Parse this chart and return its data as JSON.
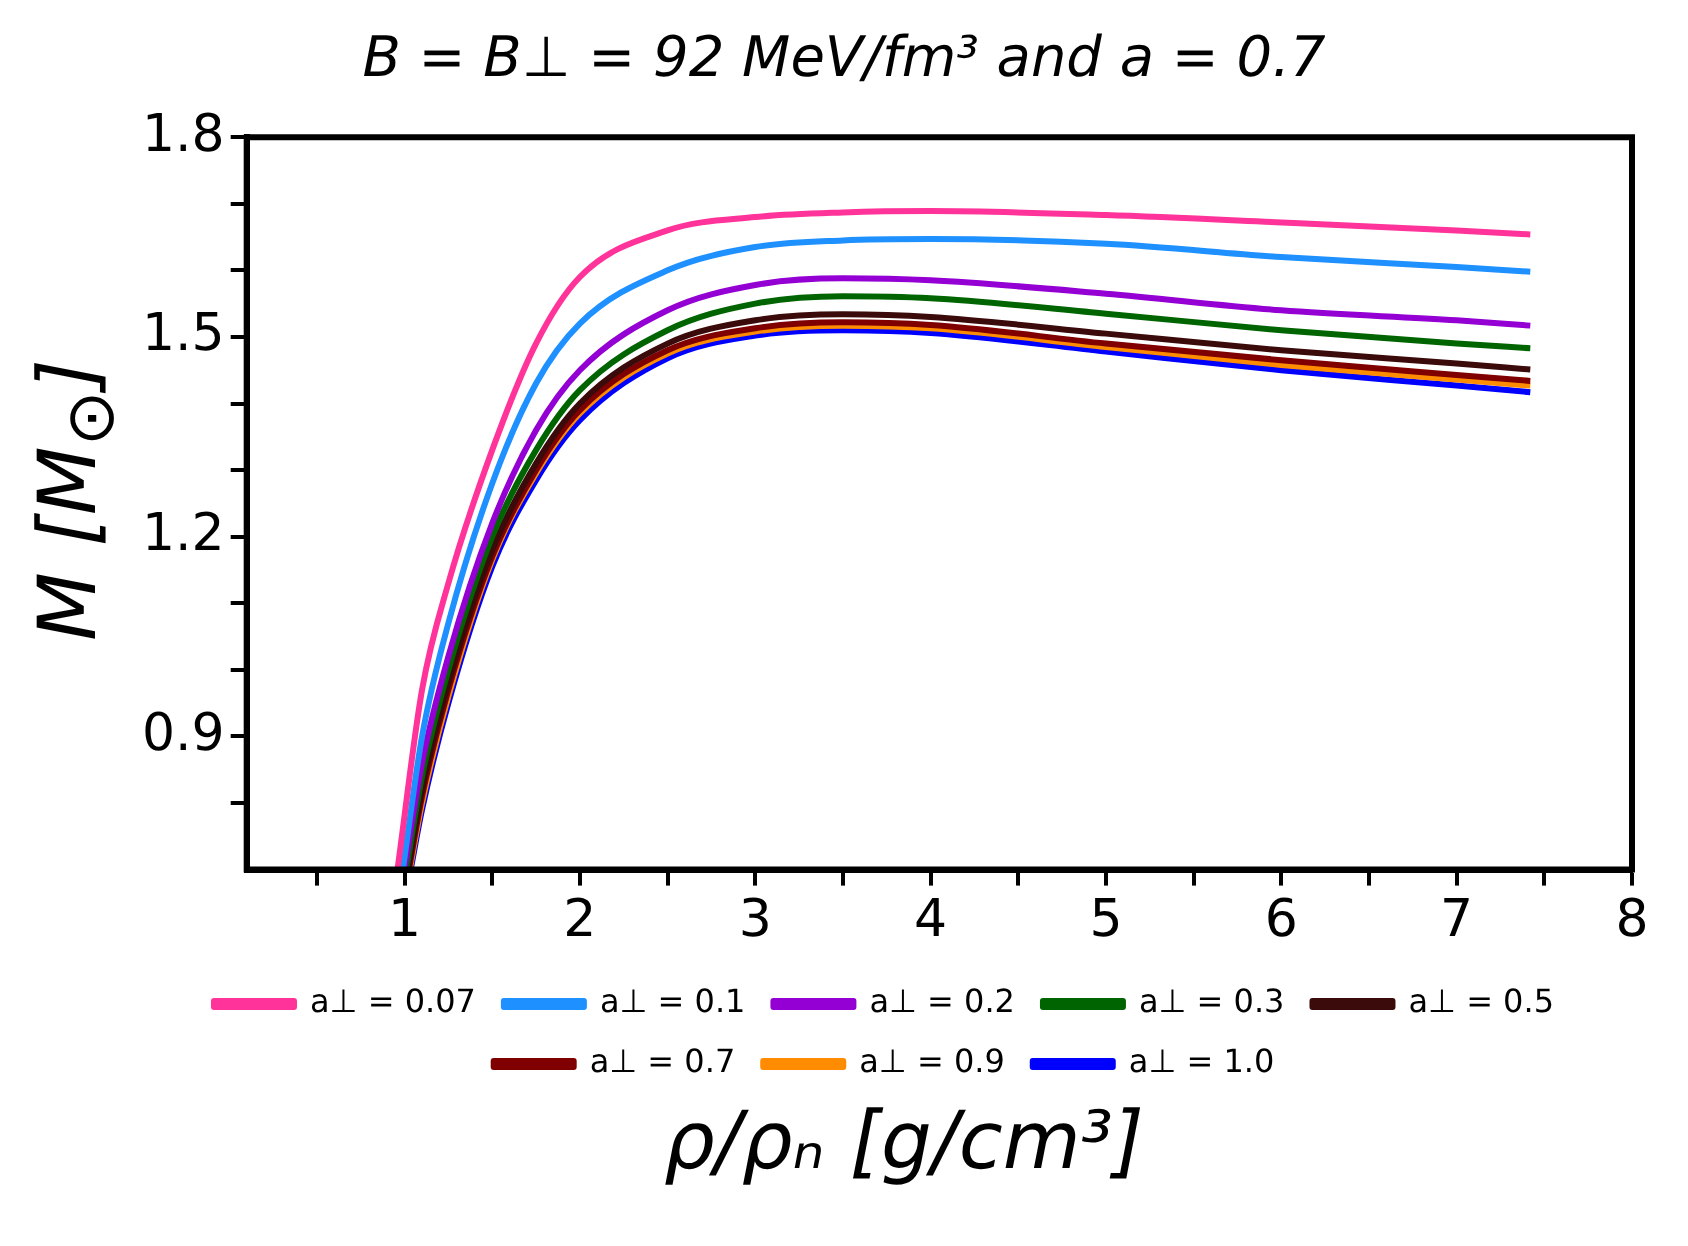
{
  "chart_data": {
    "type": "line",
    "title": "B = B⊥ = 92 MeV/fm³ and a = 0.7",
    "xlabel": "ρ/ρₙ [g/cm³]",
    "ylabel": "M [M$_{⊙}$]",
    "xlim": [
      0.1,
      8
    ],
    "xticks": [
      {
        "value": 0.5,
        "label": null
      },
      1,
      {
        "value": 1.5,
        "label": null
      },
      2,
      {
        "value": 2.5,
        "label": null
      },
      3,
      {
        "value": 3.5,
        "label": null
      },
      4,
      {
        "value": 4.5,
        "label": null
      },
      5,
      {
        "value": 5.5,
        "label": null
      },
      6,
      {
        "value": 6.5,
        "label": null
      },
      7,
      {
        "value": 7.5,
        "label": null
      },
      8
    ],
    "ylim": [
      0.7,
      1.8
    ],
    "yticks": [
      {
        "value": 0.8,
        "label": null
      },
      0.9,
      {
        "value": 1.0,
        "label": null
      },
      {
        "value": 1.1,
        "label": null
      },
      1.2,
      {
        "value": 1.3,
        "label": null
      },
      {
        "value": 1.4,
        "label": null
      },
      1.5,
      {
        "value": 1.6,
        "label": null
      },
      {
        "value": 1.7,
        "label": null
      },
      1.8
    ],
    "grid": false,
    "legend": "bottom",
    "marker": "none",
    "line_style": "solid",
    "series": [
      {
        "name": "a⊥ = 0.07",
        "color": "#ff3399",
        "x": [
          0.96,
          1.1,
          1.25,
          1.5,
          1.75,
          2,
          2.5,
          3,
          3.5,
          4,
          5,
          6,
          7,
          7.42
        ],
        "values": [
          0.7,
          0.97,
          1.13,
          1.33,
          1.49,
          1.59,
          1.66,
          1.68,
          1.687,
          1.689,
          1.683,
          1.672,
          1.66,
          1.654
        ]
      },
      {
        "name": "a⊥ = 0.1",
        "color": "#1e90ff",
        "x": [
          0.99,
          1.1,
          1.25,
          1.5,
          1.75,
          2,
          2.5,
          3,
          3.5,
          4,
          5,
          6,
          7,
          7.42
        ],
        "values": [
          0.7,
          0.9,
          1.07,
          1.28,
          1.43,
          1.52,
          1.6,
          1.635,
          1.645,
          1.647,
          1.64,
          1.62,
          1.605,
          1.598
        ]
      },
      {
        "name": "a⊥ = 0.2",
        "color": "#9400d3",
        "x": [
          1.0,
          1.1,
          1.25,
          1.5,
          1.75,
          2,
          2.5,
          3,
          3.5,
          4,
          5,
          6,
          7,
          7.42
        ],
        "values": [
          0.7,
          0.86,
          1.02,
          1.22,
          1.36,
          1.45,
          1.54,
          1.578,
          1.588,
          1.585,
          1.565,
          1.54,
          1.525,
          1.517
        ]
      },
      {
        "name": "a⊥ = 0.3",
        "color": "#006400",
        "x": [
          1.01,
          1.1,
          1.25,
          1.5,
          1.75,
          2,
          2.5,
          3,
          3.5,
          4,
          5,
          6,
          7,
          7.42
        ],
        "values": [
          0.7,
          0.84,
          1.0,
          1.2,
          1.33,
          1.42,
          1.51,
          1.55,
          1.561,
          1.558,
          1.535,
          1.51,
          1.49,
          1.483
        ]
      },
      {
        "name": "a⊥ = 0.5",
        "color": "#3b0a0a",
        "x": [
          1.02,
          1.1,
          1.25,
          1.5,
          1.75,
          2,
          2.5,
          3,
          3.5,
          4,
          5,
          6,
          7,
          7.42
        ],
        "values": [
          0.7,
          0.82,
          0.98,
          1.18,
          1.31,
          1.4,
          1.49,
          1.525,
          1.534,
          1.53,
          1.505,
          1.48,
          1.46,
          1.451
        ]
      },
      {
        "name": "a⊥ = 0.7",
        "color": "#800000",
        "x": [
          1.025,
          1.1,
          1.25,
          1.5,
          1.75,
          2,
          2.5,
          3,
          3.5,
          4,
          5,
          6,
          7,
          7.42
        ],
        "values": [
          0.7,
          0.81,
          0.97,
          1.17,
          1.3,
          1.39,
          1.48,
          1.513,
          1.522,
          1.518,
          1.49,
          1.465,
          1.443,
          1.434
        ]
      },
      {
        "name": "a⊥ = 0.9",
        "color": "#ff8c00",
        "x": [
          1.03,
          1.1,
          1.25,
          1.5,
          1.75,
          2,
          2.5,
          3,
          3.5,
          4,
          5,
          6,
          7,
          7.42
        ],
        "values": [
          0.7,
          0.8,
          0.96,
          1.165,
          1.295,
          1.385,
          1.475,
          1.508,
          1.517,
          1.513,
          1.485,
          1.458,
          1.436,
          1.427
        ]
      },
      {
        "name": "a⊥ = 1.0",
        "color": "#0000ff",
        "x": [
          1.035,
          1.1,
          1.25,
          1.5,
          1.75,
          2,
          2.5,
          3,
          3.5,
          4,
          5,
          6,
          7,
          7.42
        ],
        "values": [
          0.7,
          0.79,
          0.95,
          1.155,
          1.285,
          1.375,
          1.468,
          1.502,
          1.51,
          1.506,
          1.478,
          1.45,
          1.427,
          1.417
        ]
      }
    ]
  }
}
